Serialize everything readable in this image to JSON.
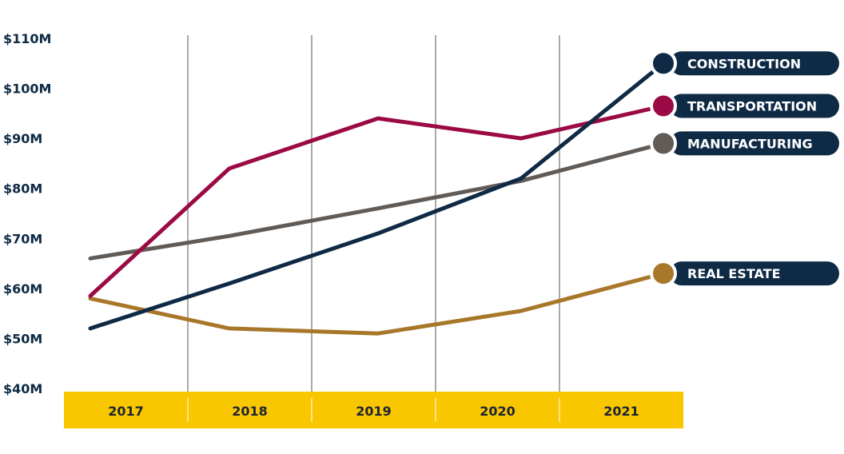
{
  "chart_data": {
    "type": "line",
    "title": "",
    "xlabel": "",
    "ylabel": "",
    "categories": [
      "2017",
      "2018",
      "2019",
      "2020",
      "2021"
    ],
    "y_ticks": [
      "$40M",
      "$50M",
      "$60M",
      "$70M",
      "$80M",
      "$90M",
      "$100M",
      "$110M"
    ],
    "ylim": [
      40,
      110
    ],
    "y_unit": "$M",
    "grid": "vertical lines between years",
    "legend": "labels at line ends (right)",
    "axis_band_color": "#f9c700",
    "label_bg_color": "#0e2a45",
    "series": [
      {
        "name": "CONSTRUCTION",
        "color": "#0e2a45",
        "values": [
          52,
          61,
          71,
          82,
          105
        ]
      },
      {
        "name": "TRANSPORTATION",
        "color": "#9b0a45",
        "values": [
          58.5,
          84,
          94,
          90,
          96.5
        ]
      },
      {
        "name": "MANUFACTURING",
        "color": "#615b57",
        "values": [
          66,
          70.5,
          76,
          81.5,
          89
        ]
      },
      {
        "name": "REAL ESTATE",
        "color": "#a8772a",
        "values": [
          58,
          52,
          51,
          55.5,
          63
        ]
      }
    ]
  }
}
